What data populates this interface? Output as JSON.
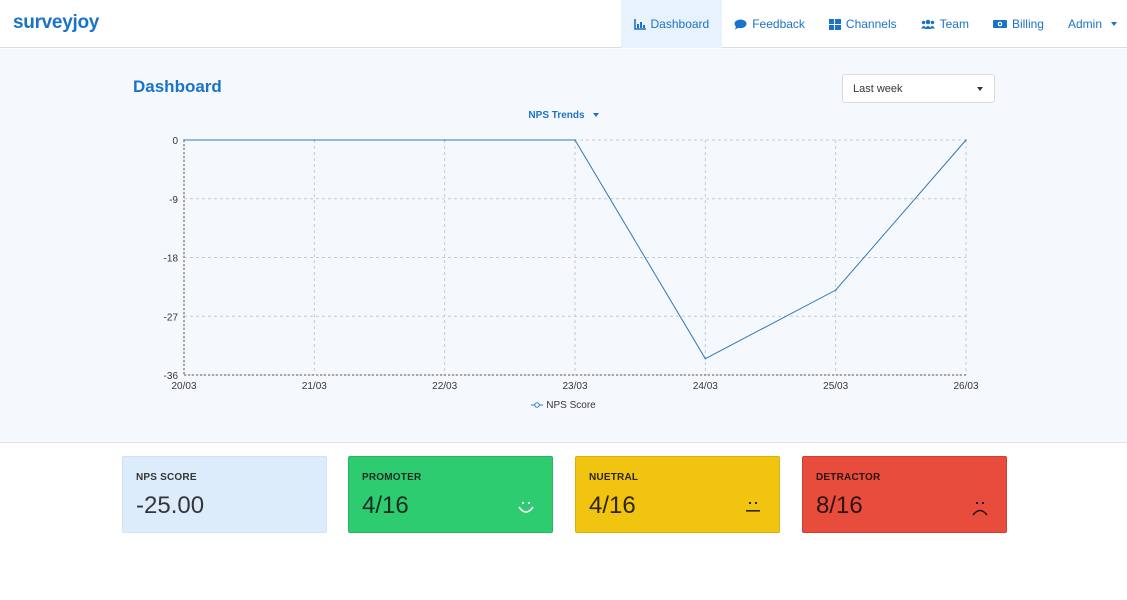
{
  "brand": "surveyjoy",
  "nav": {
    "items": [
      {
        "label": "Dashboard",
        "icon": "chart-icon",
        "active": true
      },
      {
        "label": "Feedback",
        "icon": "chat-bubble-icon",
        "active": false
      },
      {
        "label": "Channels",
        "icon": "grid-icon",
        "active": false
      },
      {
        "label": "Team",
        "icon": "users-icon",
        "active": false
      },
      {
        "label": "Billing",
        "icon": "money-icon",
        "active": false
      }
    ],
    "admin_label": "Admin"
  },
  "page": {
    "title": "Dashboard",
    "period_select": "Last week",
    "chart_selector": "NPS Trends"
  },
  "chart_data": {
    "type": "line",
    "x": [
      "20/03",
      "21/03",
      "22/03",
      "23/03",
      "24/03",
      "25/03",
      "26/03"
    ],
    "series": [
      {
        "name": "NPS Score",
        "values": [
          0,
          0,
          0,
          0,
          -33.5,
          -23,
          0
        ],
        "color": "#2e7ab8"
      }
    ],
    "yticks": [
      0,
      -9,
      -18,
      -27,
      -36
    ],
    "ylim": [
      -36,
      0
    ],
    "grid": true,
    "legend": "bottom"
  },
  "cards": {
    "nps": {
      "label": "NPS SCORE",
      "value": "-25.00",
      "color": "#dcecfb"
    },
    "promoter": {
      "label": "PROMOTER",
      "value": "4/16",
      "icon": "smile-face-icon",
      "color": "#2ecc71"
    },
    "neutral": {
      "label": "NUETRAL",
      "value": "4/16",
      "icon": "neutral-face-icon",
      "color": "#f1c40f"
    },
    "detractor": {
      "label": "DETRACTOR",
      "value": "8/16",
      "icon": "sad-face-icon",
      "color": "#e74c3c"
    }
  },
  "colors": {
    "brand": "#1a73c8",
    "hero_bg": "#f5f9fe"
  }
}
